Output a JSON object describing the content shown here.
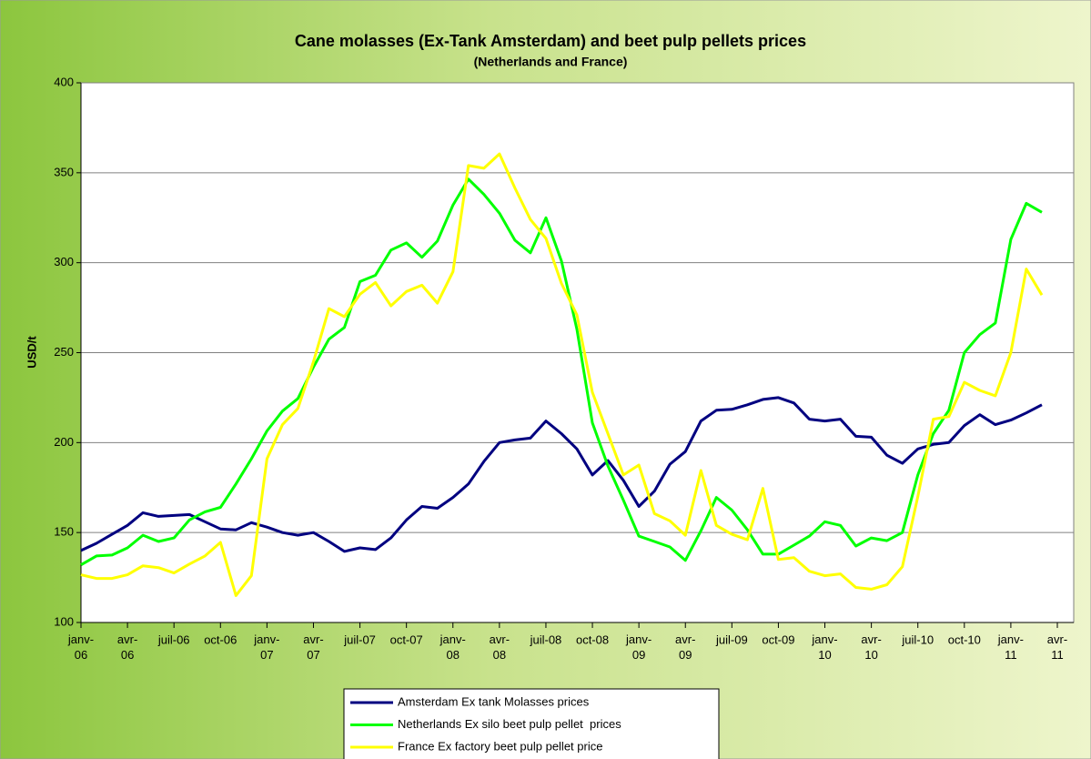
{
  "chart_data": {
    "type": "line",
    "title": "Cane molasses (Ex-Tank Amsterdam) and beet pulp pellets prices",
    "subtitle": "(Netherlands and France)",
    "y_label": "USD/t",
    "categories": [
      "janv-06",
      null,
      null,
      "avr-06",
      null,
      null,
      "juil-06",
      null,
      null,
      "oct-06",
      null,
      null,
      "janv-07",
      null,
      null,
      "avr-07",
      null,
      null,
      "juil-07",
      null,
      null,
      "oct-07",
      null,
      null,
      "janv-08",
      null,
      null,
      "avr-08",
      null,
      null,
      "juil-08",
      null,
      null,
      "oct-08",
      null,
      null,
      "janv-09",
      null,
      null,
      "avr-09",
      null,
      null,
      "juil-09",
      null,
      null,
      "oct-09",
      null,
      null,
      "janv-10",
      null,
      null,
      "avr-10",
      null,
      null,
      "juil-10",
      null,
      null,
      "oct-10",
      null,
      null,
      "janv-11",
      null,
      null,
      "avr-11"
    ],
    "series": [
      {
        "name": "Amsterdam Ex tank Molasses prices",
        "color": "#000080",
        "values": [
          140,
          144,
          149,
          154,
          161,
          159,
          159.5,
          160,
          156,
          152,
          151.5,
          155.5,
          153,
          150,
          148.5,
          150,
          145,
          139.5,
          141.5,
          140.5,
          147,
          157,
          164.5,
          163.5,
          169.5,
          177,
          189.5,
          200,
          201.5,
          202.5,
          212,
          205,
          196.5,
          182,
          190,
          179,
          164.5,
          173,
          188,
          195,
          212,
          218,
          218.5,
          221,
          224,
          225,
          222,
          213,
          212,
          213,
          203.5,
          203,
          193,
          188.5,
          196.5,
          199,
          200,
          209.5,
          215.5,
          210,
          212.5,
          216.5,
          221,
          null
        ]
      },
      {
        "name": "Netherlands Ex silo beet pulp pellet  prices",
        "color": "#00ff00",
        "values": [
          132,
          137,
          137.5,
          141.5,
          148.5,
          145,
          147,
          157,
          161.5,
          164,
          177,
          191,
          206.5,
          217.5,
          224.5,
          242,
          257.5,
          264,
          289.5,
          293,
          307,
          311,
          303,
          312,
          332,
          346.5,
          338,
          327.5,
          312.5,
          305.5,
          325,
          301,
          263,
          211,
          187,
          168,
          148,
          145,
          142,
          134.5,
          151,
          169.5,
          162.5,
          151.5,
          138,
          138,
          143,
          148,
          156,
          154,
          142.5,
          147,
          145.5,
          150,
          182,
          205,
          218,
          250,
          260,
          266.5,
          313,
          333,
          328,
          null
        ]
      },
      {
        "name": "France Ex factory beet pulp pellet price",
        "color": "#ffff00",
        "values": [
          126.5,
          124.5,
          124.5,
          126.5,
          131.5,
          130.5,
          127.5,
          132.5,
          137,
          144.5,
          115,
          126,
          191,
          210,
          219,
          245,
          274.5,
          270,
          282.5,
          289,
          276,
          284,
          287.5,
          277.5,
          295,
          354,
          352.5,
          360.5,
          341.5,
          324,
          313.5,
          288.5,
          271,
          228,
          205,
          182,
          187.5,
          160.5,
          156.5,
          148.5,
          184.5,
          154,
          149,
          146,
          174.5,
          135,
          136,
          128.5,
          126,
          127,
          119.5,
          118.5,
          121,
          131,
          170,
          213,
          214.5,
          233.5,
          229,
          226,
          250,
          296.5,
          282,
          null
        ]
      }
    ],
    "ylim": [
      100,
      400
    ],
    "yticks": [
      100,
      150,
      200,
      250,
      300,
      350,
      400
    ],
    "grid": true,
    "legend": "bottom"
  }
}
